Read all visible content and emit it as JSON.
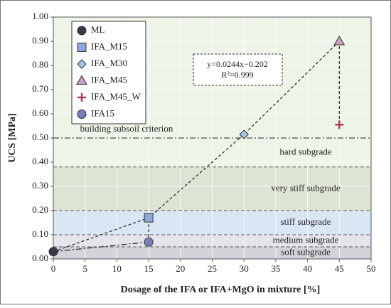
{
  "chart_data": {
    "type": "scatter",
    "xlabel": "Dosage of the IFA or IFA+MgO in mixture [%]",
    "ylabel": "UCS [MPa]",
    "xlim": [
      0,
      50
    ],
    "ylim": [
      0,
      1
    ],
    "xticks": [
      0,
      5,
      10,
      15,
      20,
      25,
      30,
      35,
      40,
      45,
      50
    ],
    "yticks": [
      {
        "value": 0,
        "label": "0.00"
      },
      {
        "value": 0.1,
        "label": "0.10"
      },
      {
        "value": 0.2,
        "label": "0.20"
      },
      {
        "value": 0.3,
        "label": "0.30"
      },
      {
        "value": 0.4,
        "label": "0.40"
      },
      {
        "value": 0.5,
        "label": "0.50"
      },
      {
        "value": 0.6,
        "label": "0.60"
      },
      {
        "value": 0.7,
        "label": "0.70"
      },
      {
        "value": 0.8,
        "label": "0.80"
      },
      {
        "value": 0.9,
        "label": "0.90"
      },
      {
        "value": 1,
        "label": "1.00"
      }
    ],
    "grid": true,
    "bands": [
      {
        "label": "soft subgrade",
        "from": 0,
        "to": 0.05,
        "color": "#d3d3da"
      },
      {
        "label": "medium subgrade",
        "from": 0.05,
        "to": 0.1,
        "color": "#e4e4ea"
      },
      {
        "label": "stiff subgrade",
        "from": 0.1,
        "to": 0.2,
        "color": "#d9e6f4"
      },
      {
        "label": "very stiff subgrade",
        "from": 0.2,
        "to": 0.38,
        "color": "#dde4d4"
      },
      {
        "label": "hard subgrade",
        "from": 0.38,
        "to": 0.5,
        "color": "#eef5e8"
      }
    ],
    "criterion": {
      "label": "building subsoil criterion",
      "value": 0.5
    },
    "equation": [
      "y=0.0244x−0.202",
      "R²=0.999"
    ],
    "series": [
      {
        "name": "ML",
        "marker": "circle",
        "color": "#3b3848",
        "x": [
          0
        ],
        "values": [
          0.03
        ]
      },
      {
        "name": "IFA_M15",
        "marker": "square",
        "color": "#8ea9d8",
        "x": [
          15
        ],
        "values": [
          0.17
        ]
      },
      {
        "name": "IFA_M30",
        "marker": "diamond",
        "color": "#a9c4e8",
        "x": [
          30
        ],
        "values": [
          0.515
        ]
      },
      {
        "name": "IFA_M45",
        "marker": "triangle",
        "color": "#c9a0c0",
        "x": [
          45
        ],
        "values": [
          0.9
        ]
      },
      {
        "name": "IFA_M45_W",
        "marker": "plus",
        "color": "#b0405a",
        "x": [
          45
        ],
        "values": [
          0.555
        ]
      },
      {
        "name": "IFA15",
        "marker": "circle",
        "color": "#7b7fb5",
        "x": [
          15
        ],
        "values": [
          0.07
        ]
      }
    ]
  }
}
